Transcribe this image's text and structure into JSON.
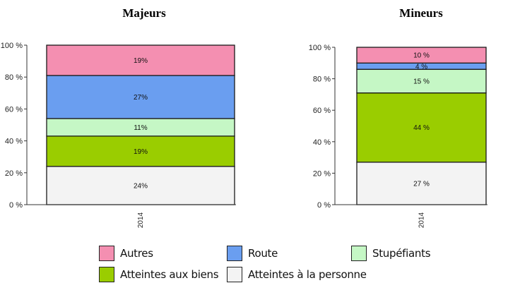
{
  "chart_data": [
    {
      "type": "bar",
      "stacked": true,
      "title": "Majeurs",
      "categories": [
        "2014"
      ],
      "yticks": [
        "0 %",
        "20 %",
        "40 %",
        "60 %",
        "80 %",
        "100 %"
      ],
      "ylim": [
        0,
        100
      ],
      "series": [
        {
          "name": "Atteintes à la personne",
          "values": [
            24
          ],
          "label": "24%"
        },
        {
          "name": "Atteintes aux biens",
          "values": [
            19
          ],
          "label": "19%"
        },
        {
          "name": "Stupéfiants",
          "values": [
            11
          ],
          "label": "11%"
        },
        {
          "name": "Route",
          "values": [
            27
          ],
          "label": "27%"
        },
        {
          "name": "Autres",
          "values": [
            19
          ],
          "label": "19%"
        }
      ]
    },
    {
      "type": "bar",
      "stacked": true,
      "title": "Mineurs",
      "categories": [
        "2014"
      ],
      "yticks": [
        "0 %",
        "20 %",
        "40 %",
        "60 %",
        "80 %",
        "100 %"
      ],
      "ylim": [
        0,
        100
      ],
      "series": [
        {
          "name": "Atteintes à la personne",
          "values": [
            27
          ],
          "label": "27 %"
        },
        {
          "name": "Atteintes aux biens",
          "values": [
            44
          ],
          "label": "44 %"
        },
        {
          "name": "Stupéfiants",
          "values": [
            15
          ],
          "label": "15 %"
        },
        {
          "name": "Route",
          "values": [
            4
          ],
          "label": "4 %"
        },
        {
          "name": "Autres",
          "values": [
            10
          ],
          "label": "10 %"
        }
      ]
    }
  ],
  "legend": {
    "items": [
      {
        "label": "Autres",
        "color": "#f48fb1"
      },
      {
        "label": "Route",
        "color": "#6a9ef0"
      },
      {
        "label": "Stupéfiants",
        "color": "#c5f7c5"
      },
      {
        "label": "Atteintes aux biens",
        "color": "#9acd00"
      },
      {
        "label": "Atteintes à la personne",
        "color": "#f3f3f3"
      }
    ]
  },
  "colors": {
    "Autres": "#f48fb1",
    "Route": "#6a9ef0",
    "Stupéfiants": "#c5f7c5",
    "Atteintes aux biens": "#9acd00",
    "Atteintes à la personne": "#f3f3f3"
  }
}
